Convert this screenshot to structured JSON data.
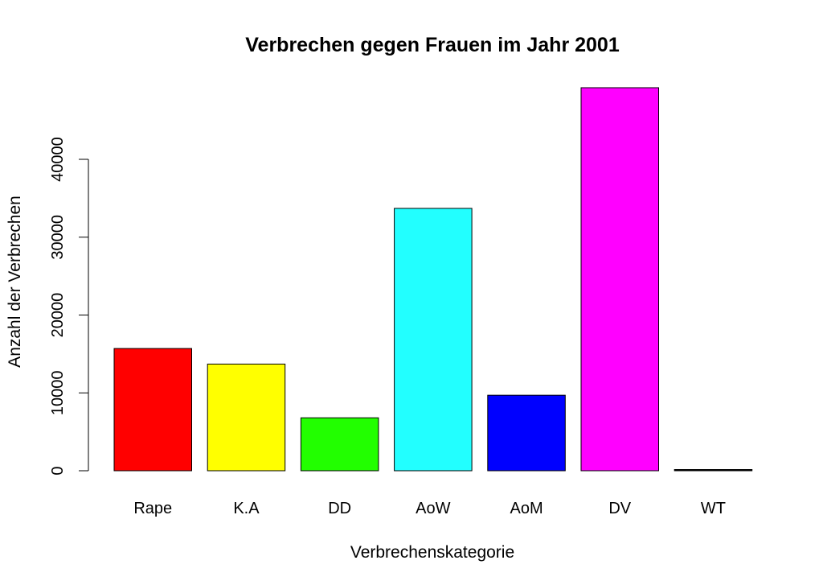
{
  "chart_data": {
    "type": "bar",
    "title": "Verbrechen gegen Frauen im Jahr 2001",
    "xlabel": "Verbrechenskategorie",
    "ylabel": "Anzahl der Verbrechen",
    "categories": [
      "Rape",
      "K.A",
      "DD",
      "AoW",
      "AoM",
      "DV",
      "WT"
    ],
    "values": [
      15700,
      13700,
      6800,
      33700,
      9700,
      49200,
      150
    ],
    "colors": [
      "#ff0000",
      "#ffff00",
      "#22ff00",
      "#22ffff",
      "#0000ff",
      "#ff00ff",
      "#000000"
    ],
    "yticks": [
      0,
      10000,
      20000,
      30000,
      40000
    ],
    "ytick_labels": [
      "0",
      "10000",
      "20000",
      "30000",
      "40000"
    ],
    "grid": false,
    "legend": "none"
  }
}
